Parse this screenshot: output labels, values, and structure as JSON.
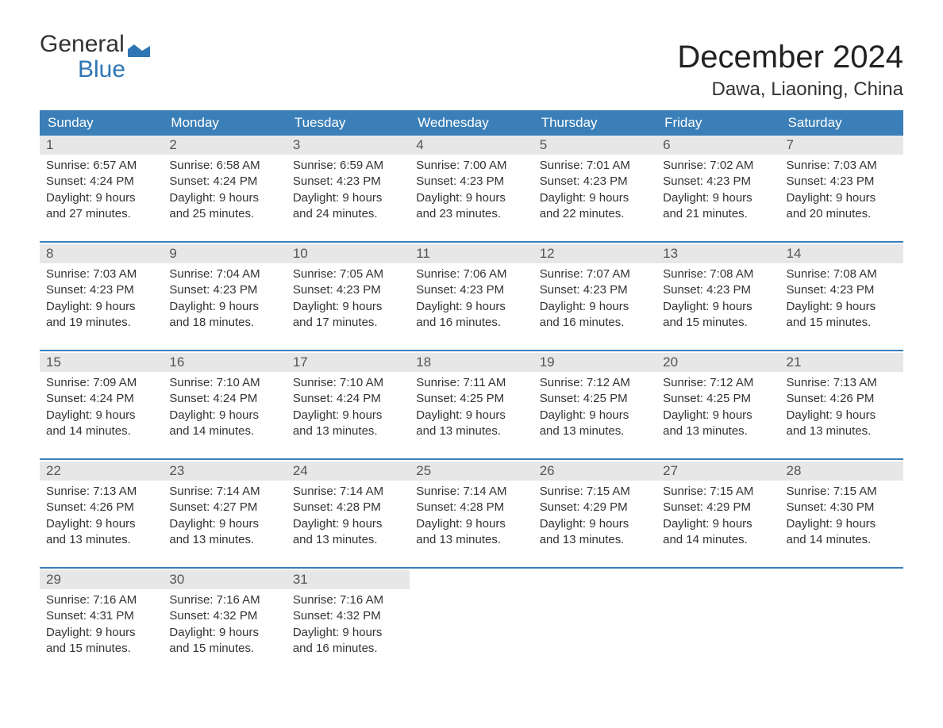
{
  "brand": {
    "word1": "General",
    "word2": "Blue",
    "accent_color": "#2f76b5"
  },
  "title": "December 2024",
  "location": "Dawa, Liaoning, China",
  "colors": {
    "header_bg": "#3b7fb8",
    "header_text": "#ffffff",
    "daynum_bg": "#e7e7e7",
    "text": "#333333",
    "page_bg": "#ffffff",
    "rule": "#3b7fb8"
  },
  "day_headers": [
    "Sunday",
    "Monday",
    "Tuesday",
    "Wednesday",
    "Thursday",
    "Friday",
    "Saturday"
  ],
  "weeks": [
    [
      {
        "n": "1",
        "sunrise": "6:57 AM",
        "sunset": "4:24 PM",
        "daylight": "9 hours and 27 minutes."
      },
      {
        "n": "2",
        "sunrise": "6:58 AM",
        "sunset": "4:24 PM",
        "daylight": "9 hours and 25 minutes."
      },
      {
        "n": "3",
        "sunrise": "6:59 AM",
        "sunset": "4:23 PM",
        "daylight": "9 hours and 24 minutes."
      },
      {
        "n": "4",
        "sunrise": "7:00 AM",
        "sunset": "4:23 PM",
        "daylight": "9 hours and 23 minutes."
      },
      {
        "n": "5",
        "sunrise": "7:01 AM",
        "sunset": "4:23 PM",
        "daylight": "9 hours and 22 minutes."
      },
      {
        "n": "6",
        "sunrise": "7:02 AM",
        "sunset": "4:23 PM",
        "daylight": "9 hours and 21 minutes."
      },
      {
        "n": "7",
        "sunrise": "7:03 AM",
        "sunset": "4:23 PM",
        "daylight": "9 hours and 20 minutes."
      }
    ],
    [
      {
        "n": "8",
        "sunrise": "7:03 AM",
        "sunset": "4:23 PM",
        "daylight": "9 hours and 19 minutes."
      },
      {
        "n": "9",
        "sunrise": "7:04 AM",
        "sunset": "4:23 PM",
        "daylight": "9 hours and 18 minutes."
      },
      {
        "n": "10",
        "sunrise": "7:05 AM",
        "sunset": "4:23 PM",
        "daylight": "9 hours and 17 minutes."
      },
      {
        "n": "11",
        "sunrise": "7:06 AM",
        "sunset": "4:23 PM",
        "daylight": "9 hours and 16 minutes."
      },
      {
        "n": "12",
        "sunrise": "7:07 AM",
        "sunset": "4:23 PM",
        "daylight": "9 hours and 16 minutes."
      },
      {
        "n": "13",
        "sunrise": "7:08 AM",
        "sunset": "4:23 PM",
        "daylight": "9 hours and 15 minutes."
      },
      {
        "n": "14",
        "sunrise": "7:08 AM",
        "sunset": "4:23 PM",
        "daylight": "9 hours and 15 minutes."
      }
    ],
    [
      {
        "n": "15",
        "sunrise": "7:09 AM",
        "sunset": "4:24 PM",
        "daylight": "9 hours and 14 minutes."
      },
      {
        "n": "16",
        "sunrise": "7:10 AM",
        "sunset": "4:24 PM",
        "daylight": "9 hours and 14 minutes."
      },
      {
        "n": "17",
        "sunrise": "7:10 AM",
        "sunset": "4:24 PM",
        "daylight": "9 hours and 13 minutes."
      },
      {
        "n": "18",
        "sunrise": "7:11 AM",
        "sunset": "4:25 PM",
        "daylight": "9 hours and 13 minutes."
      },
      {
        "n": "19",
        "sunrise": "7:12 AM",
        "sunset": "4:25 PM",
        "daylight": "9 hours and 13 minutes."
      },
      {
        "n": "20",
        "sunrise": "7:12 AM",
        "sunset": "4:25 PM",
        "daylight": "9 hours and 13 minutes."
      },
      {
        "n": "21",
        "sunrise": "7:13 AM",
        "sunset": "4:26 PM",
        "daylight": "9 hours and 13 minutes."
      }
    ],
    [
      {
        "n": "22",
        "sunrise": "7:13 AM",
        "sunset": "4:26 PM",
        "daylight": "9 hours and 13 minutes."
      },
      {
        "n": "23",
        "sunrise": "7:14 AM",
        "sunset": "4:27 PM",
        "daylight": "9 hours and 13 minutes."
      },
      {
        "n": "24",
        "sunrise": "7:14 AM",
        "sunset": "4:28 PM",
        "daylight": "9 hours and 13 minutes."
      },
      {
        "n": "25",
        "sunrise": "7:14 AM",
        "sunset": "4:28 PM",
        "daylight": "9 hours and 13 minutes."
      },
      {
        "n": "26",
        "sunrise": "7:15 AM",
        "sunset": "4:29 PM",
        "daylight": "9 hours and 13 minutes."
      },
      {
        "n": "27",
        "sunrise": "7:15 AM",
        "sunset": "4:29 PM",
        "daylight": "9 hours and 14 minutes."
      },
      {
        "n": "28",
        "sunrise": "7:15 AM",
        "sunset": "4:30 PM",
        "daylight": "9 hours and 14 minutes."
      }
    ],
    [
      {
        "n": "29",
        "sunrise": "7:16 AM",
        "sunset": "4:31 PM",
        "daylight": "9 hours and 15 minutes."
      },
      {
        "n": "30",
        "sunrise": "7:16 AM",
        "sunset": "4:32 PM",
        "daylight": "9 hours and 15 minutes."
      },
      {
        "n": "31",
        "sunrise": "7:16 AM",
        "sunset": "4:32 PM",
        "daylight": "9 hours and 16 minutes."
      },
      null,
      null,
      null,
      null
    ]
  ],
  "labels": {
    "sunrise": "Sunrise:",
    "sunset": "Sunset:",
    "daylight": "Daylight:"
  }
}
